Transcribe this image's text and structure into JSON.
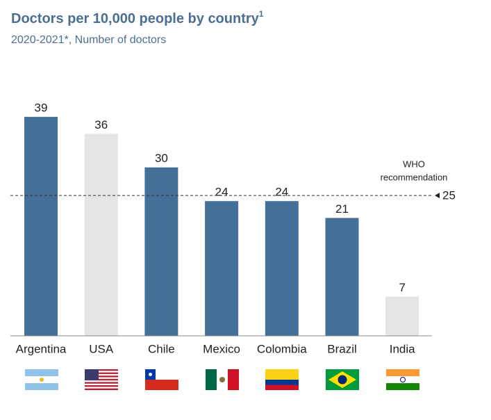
{
  "chart_data": {
    "type": "bar",
    "title": "Doctors per 10,000 people by country",
    "title_footnote": "1",
    "subtitle": "2020-2021*, Number of doctors",
    "categories": [
      "Argentina",
      "USA",
      "Chile",
      "Mexico",
      "Colombia",
      "Brazil",
      "India"
    ],
    "values": [
      39,
      36,
      30,
      24,
      24,
      21,
      7
    ],
    "colors": [
      "#436f98",
      "#e6e4e4",
      "#436f98",
      "#436f98",
      "#436f98",
      "#436f98",
      "#e6e4e4"
    ],
    "ylim": [
      0,
      40
    ],
    "reference_line": {
      "value": 25,
      "label_line1": "WHO",
      "label_line2": "recommendation"
    }
  }
}
